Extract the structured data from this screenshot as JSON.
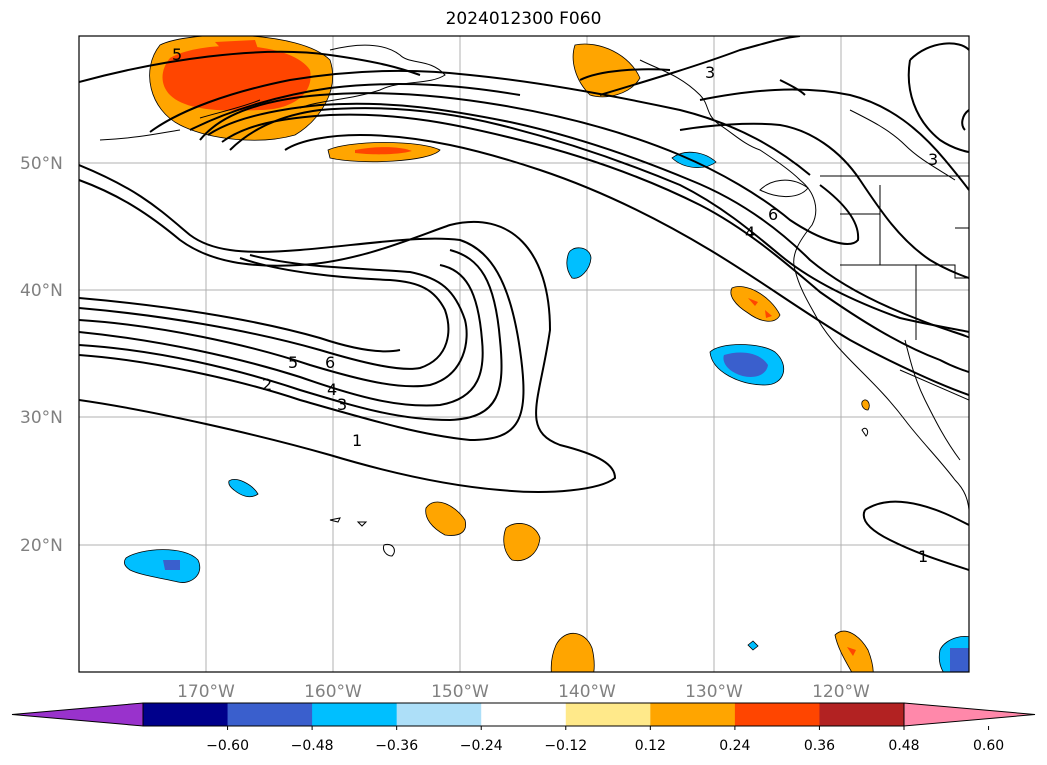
{
  "title": "2024012300 F060",
  "lat_labels": [
    "50°N",
    "40°N",
    "30°N",
    "20°N"
  ],
  "lon_labels": [
    "170°W",
    "160°W",
    "150°W",
    "140°W",
    "130°W",
    "120°W"
  ],
  "colorbar": {
    "ticks": [
      "−0.60",
      "−0.48",
      "−0.36",
      "−0.24",
      "−0.12",
      "0.12",
      "0.24",
      "0.36",
      "0.48",
      "0.60"
    ],
    "colors": [
      "#9932CC",
      "#00008B",
      "#3A5FCD",
      "#00BFFF",
      "#ADDFF8",
      "#FFFFFF",
      "#FFE98A",
      "#FFA500",
      "#FF4500",
      "#B22222",
      "#FF88AA"
    ]
  },
  "contour_labels": [
    "1",
    "2",
    "3",
    "4",
    "5",
    "6"
  ]
}
